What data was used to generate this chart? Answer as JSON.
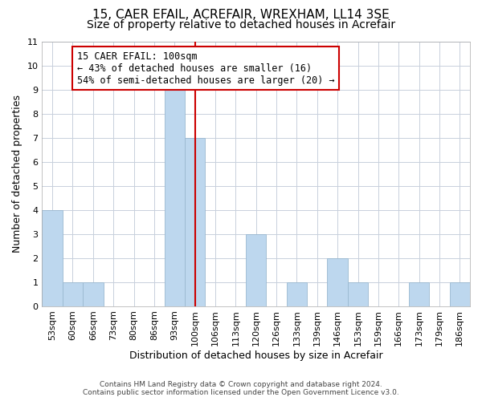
{
  "title": "15, CAER EFAIL, ACREFAIR, WREXHAM, LL14 3SE",
  "subtitle": "Size of property relative to detached houses in Acrefair",
  "xlabel": "Distribution of detached houses by size in Acrefair",
  "ylabel": "Number of detached properties",
  "footer_line1": "Contains HM Land Registry data © Crown copyright and database right 2024.",
  "footer_line2": "Contains public sector information licensed under the Open Government Licence v3.0.",
  "annotation_title": "15 CAER EFAIL: 100sqm",
  "annotation_line1": "← 43% of detached houses are smaller (16)",
  "annotation_line2": "54% of semi-detached houses are larger (20) →",
  "bin_labels": [
    "53sqm",
    "60sqm",
    "66sqm",
    "73sqm",
    "80sqm",
    "86sqm",
    "93sqm",
    "100sqm",
    "106sqm",
    "113sqm",
    "120sqm",
    "126sqm",
    "133sqm",
    "139sqm",
    "146sqm",
    "153sqm",
    "159sqm",
    "166sqm",
    "173sqm",
    "179sqm",
    "186sqm"
  ],
  "bin_counts": [
    4,
    1,
    1,
    0,
    0,
    0,
    9,
    7,
    0,
    0,
    3,
    0,
    1,
    0,
    2,
    1,
    0,
    0,
    1,
    0,
    1
  ],
  "bar_color": "#bdd7ee",
  "bar_edge_color": "#9ab8d0",
  "highlight_index": 7,
  "highlight_line_color": "#cc0000",
  "annotation_box_edge_color": "#cc0000",
  "annotation_box_face_color": "#ffffff",
  "ylim": [
    0,
    11
  ],
  "yticks": [
    0,
    1,
    2,
    3,
    4,
    5,
    6,
    7,
    8,
    9,
    10,
    11
  ],
  "background_color": "#ffffff",
  "grid_color": "#c8d0dc",
  "title_fontsize": 11,
  "subtitle_fontsize": 10,
  "axis_label_fontsize": 9,
  "tick_fontsize": 8,
  "annotation_fontsize": 8.5,
  "footer_fontsize": 6.5
}
